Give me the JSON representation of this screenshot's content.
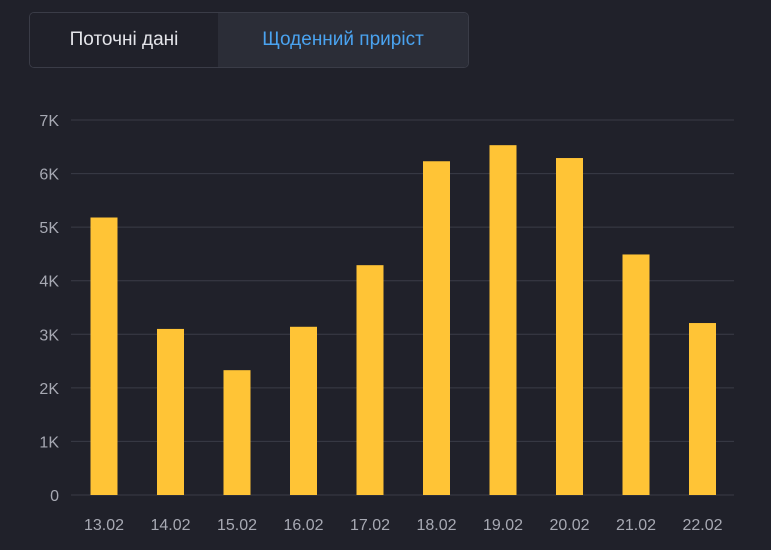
{
  "toggle": {
    "current_label": "Поточні дані",
    "daily_label": "Щоденний приріст",
    "selected": "daily"
  },
  "colors": {
    "background": "#20212a",
    "bar": "#ffc436",
    "grid": "#3a3c47",
    "axis_text": "#a7a9b3",
    "accent": "#4aa3f0"
  },
  "chart_data": {
    "type": "bar",
    "categories": [
      "13.02",
      "14.02",
      "15.02",
      "16.02",
      "17.02",
      "18.02",
      "19.02",
      "20.02",
      "21.02",
      "22.02"
    ],
    "values": [
      5180,
      3100,
      2330,
      3140,
      4290,
      6230,
      6530,
      6290,
      4490,
      3210
    ],
    "ylim": [
      0,
      7000
    ],
    "yticks": [
      0,
      1000,
      2000,
      3000,
      4000,
      5000,
      6000,
      7000
    ],
    "ytick_labels": [
      "0",
      "1K",
      "2K",
      "3K",
      "4K",
      "5K",
      "6K",
      "7K"
    ],
    "grid": true,
    "legend": "none"
  }
}
